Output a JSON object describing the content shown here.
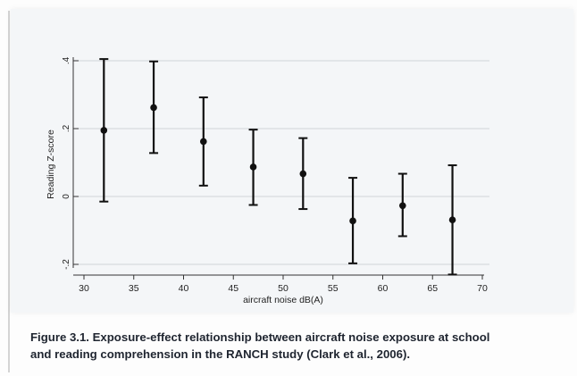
{
  "chart_data": {
    "type": "scatter",
    "title": "",
    "xlabel": "aircraft noise dB(A)",
    "ylabel": "Reading Z-score",
    "xlim": [
      30,
      70
    ],
    "ylim": [
      -0.2,
      0.4
    ],
    "xticks": [
      "30",
      "35",
      "40",
      "45",
      "50",
      "55",
      "60",
      "65",
      "70"
    ],
    "yticks": [
      {
        "value": -0.2,
        "label": "-.2"
      },
      {
        "value": 0,
        "label": "0"
      },
      {
        "value": 0.2,
        "label": ".2"
      },
      {
        "value": 0.4,
        "label": ".4"
      }
    ],
    "grid": true,
    "points": [
      {
        "x": 32,
        "y": 0.195,
        "lower": -0.015,
        "upper": 0.405
      },
      {
        "x": 37,
        "y": 0.262,
        "lower": 0.128,
        "upper": 0.398
      },
      {
        "x": 42,
        "y": 0.162,
        "lower": 0.032,
        "upper": 0.292
      },
      {
        "x": 47,
        "y": 0.087,
        "lower": -0.025,
        "upper": 0.197
      },
      {
        "x": 52,
        "y": 0.067,
        "lower": -0.037,
        "upper": 0.172
      },
      {
        "x": 57,
        "y": -0.072,
        "lower": -0.197,
        "upper": 0.055
      },
      {
        "x": 62,
        "y": -0.027,
        "lower": -0.117,
        "upper": 0.067
      },
      {
        "x": 67,
        "y": -0.069,
        "lower": -0.23,
        "upper": 0.092
      }
    ],
    "colors": {
      "marker": "#111111",
      "grid": "#d0d4d8",
      "axis": "#333333",
      "text": "#222222"
    }
  },
  "caption": {
    "line1": "Figure 3.1. Exposure-effect relationship between aircraft noise exposure at school",
    "line2": "and reading comprehension in the RANCH study (Clark et al., 2006)."
  }
}
